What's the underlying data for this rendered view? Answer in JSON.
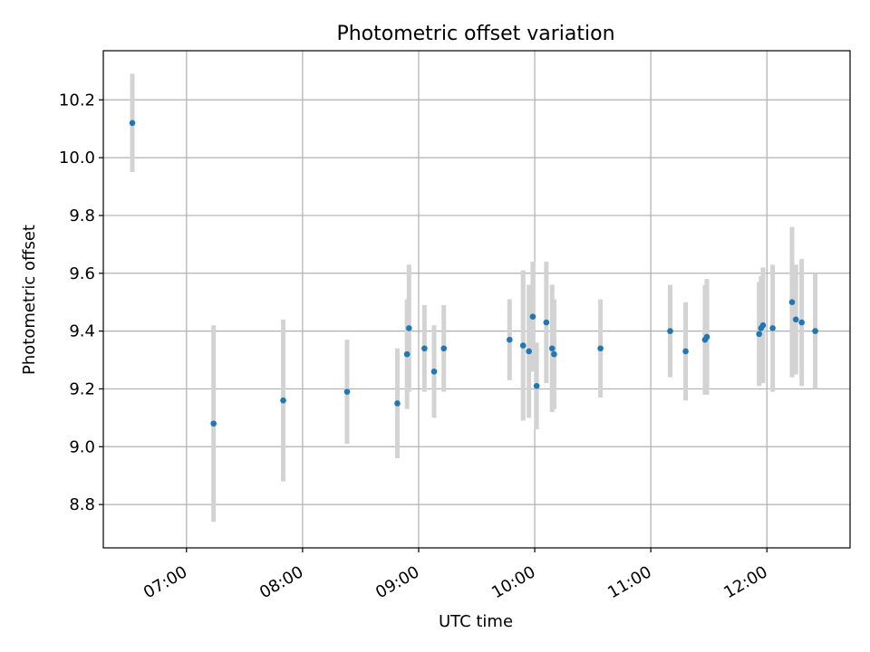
{
  "chart_data": {
    "type": "scatter",
    "title": "Photometric offset variation",
    "xlabel": "UTC time",
    "ylabel": "Photometric offset",
    "x_ticks": [
      "07:00",
      "08:00",
      "09:00",
      "10:00",
      "11:00",
      "12:00"
    ],
    "y_ticks": [
      "8.8",
      "9.0",
      "9.2",
      "9.4",
      "9.6",
      "9.8",
      "10.0",
      "10.2"
    ],
    "xlim": [
      "06:17",
      "12:43"
    ],
    "ylim": [
      8.65,
      10.37
    ],
    "grid": true,
    "colors": {
      "marker": "#1f77b4",
      "errorbar": "#d3d3d3",
      "grid": "#b0b0b0"
    },
    "points": [
      {
        "x": "06:32",
        "y": 10.12,
        "yerr": 0.17
      },
      {
        "x": "07:14",
        "y": 9.08,
        "yerr": 0.34
      },
      {
        "x": "07:50",
        "y": 9.16,
        "yerr": 0.28
      },
      {
        "x": "08:23",
        "y": 9.19,
        "yerr": 0.18
      },
      {
        "x": "08:49",
        "y": 9.15,
        "yerr": 0.19
      },
      {
        "x": "08:54",
        "y": 9.32,
        "yerr": 0.19
      },
      {
        "x": "08:55",
        "y": 9.41,
        "yerr": 0.22
      },
      {
        "x": "09:03",
        "y": 9.34,
        "yerr": 0.15
      },
      {
        "x": "09:08",
        "y": 9.26,
        "yerr": 0.16
      },
      {
        "x": "09:13",
        "y": 9.34,
        "yerr": 0.15
      },
      {
        "x": "09:47",
        "y": 9.37,
        "yerr": 0.14
      },
      {
        "x": "09:54",
        "y": 9.35,
        "yerr": 0.26
      },
      {
        "x": "09:57",
        "y": 9.33,
        "yerr": 0.23
      },
      {
        "x": "09:59",
        "y": 9.45,
        "yerr": 0.19
      },
      {
        "x": "10:01",
        "y": 9.21,
        "yerr": 0.15
      },
      {
        "x": "10:06",
        "y": 9.43,
        "yerr": 0.21
      },
      {
        "x": "10:09",
        "y": 9.34,
        "yerr": 0.22
      },
      {
        "x": "10:10",
        "y": 9.32,
        "yerr": 0.19
      },
      {
        "x": "10:34",
        "y": 9.34,
        "yerr": 0.17
      },
      {
        "x": "11:10",
        "y": 9.4,
        "yerr": 0.16
      },
      {
        "x": "11:18",
        "y": 9.33,
        "yerr": 0.17
      },
      {
        "x": "11:28",
        "y": 9.37,
        "yerr": 0.19
      },
      {
        "x": "11:29",
        "y": 9.38,
        "yerr": 0.2
      },
      {
        "x": "11:56",
        "y": 9.39,
        "yerr": 0.18
      },
      {
        "x": "11:57",
        "y": 9.41,
        "yerr": 0.18
      },
      {
        "x": "11:58",
        "y": 9.42,
        "yerr": 0.2
      },
      {
        "x": "12:03",
        "y": 9.41,
        "yerr": 0.22
      },
      {
        "x": "12:13",
        "y": 9.5,
        "yerr": 0.26
      },
      {
        "x": "12:15",
        "y": 9.44,
        "yerr": 0.19
      },
      {
        "x": "12:18",
        "y": 9.43,
        "yerr": 0.22
      },
      {
        "x": "12:25",
        "y": 9.4,
        "yerr": 0.2
      }
    ]
  }
}
